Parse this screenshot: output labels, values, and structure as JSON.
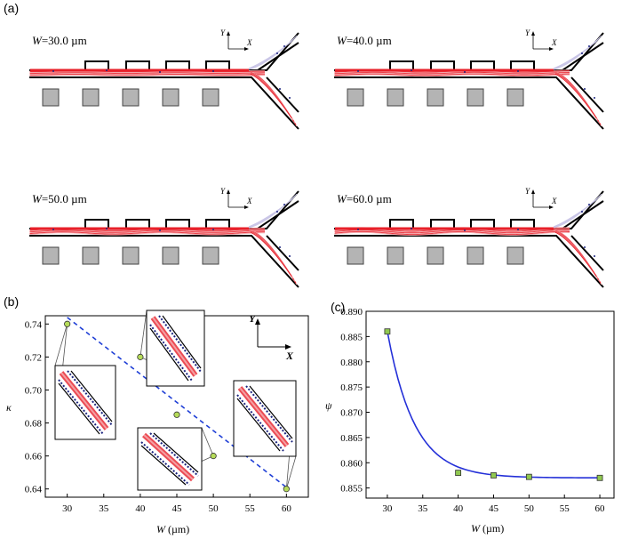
{
  "panel_labels": {
    "a": "(a)",
    "b": "(b)",
    "c": "(c)"
  },
  "sim_panels": [
    {
      "w_label": "W",
      "w_value": "=30.0 µm"
    },
    {
      "w_label": "W",
      "w_value": "=40.0 µm"
    },
    {
      "w_label": "W",
      "w_value": "=50.0 µm"
    },
    {
      "w_label": "W",
      "w_value": "=60.0 µm"
    }
  ],
  "axis_glyph": {
    "x": "X",
    "y": "Y"
  },
  "colors": {
    "stream": "#e8202a",
    "stream_light": "#f4a0a4",
    "particle": "#1a237e",
    "wall": "#000000",
    "block": "#b4b4b4",
    "dashed": "#1f3fd6",
    "curve": "#2430d8",
    "marker_b": "#b6dc5a",
    "marker_c": "#90c850"
  },
  "chart_data": [
    {
      "id": "b",
      "type": "scatter",
      "xlabel_var": "W",
      "xlabel_unit": " (µm)",
      "ylabel": "κ",
      "x": [
        30,
        40,
        45,
        50,
        60
      ],
      "y": [
        0.74,
        0.72,
        0.685,
        0.66,
        0.64
      ],
      "xlim": [
        27,
        63
      ],
      "ylim": [
        0.635,
        0.745
      ],
      "xticks": [
        "30",
        "35",
        "40",
        "45",
        "50",
        "55",
        "60"
      ],
      "yticks": [
        "0.64",
        "0.66",
        "0.68",
        "0.70",
        "0.72",
        "0.74"
      ],
      "trend_line": {
        "x": [
          30,
          60
        ],
        "y": [
          0.744,
          0.641
        ],
        "style": "dashed"
      }
    },
    {
      "id": "c",
      "type": "scatter",
      "xlabel_var": "W",
      "xlabel_unit": " (µm)",
      "ylabel": "ψ",
      "x": [
        30,
        40,
        45,
        50,
        60
      ],
      "y": [
        0.886,
        0.858,
        0.8575,
        0.8572,
        0.857
      ],
      "xlim": [
        27,
        62
      ],
      "ylim": [
        0.853,
        0.89
      ],
      "xticks": [
        "30",
        "35",
        "40",
        "45",
        "50",
        "55",
        "60"
      ],
      "yticks": [
        "0.855",
        "0.860",
        "0.865",
        "0.870",
        "0.875",
        "0.880",
        "0.885",
        "0.890"
      ],
      "fit": {
        "type": "exp_decay",
        "a": 0.029,
        "b": 0.26,
        "c": 0.857
      }
    }
  ]
}
